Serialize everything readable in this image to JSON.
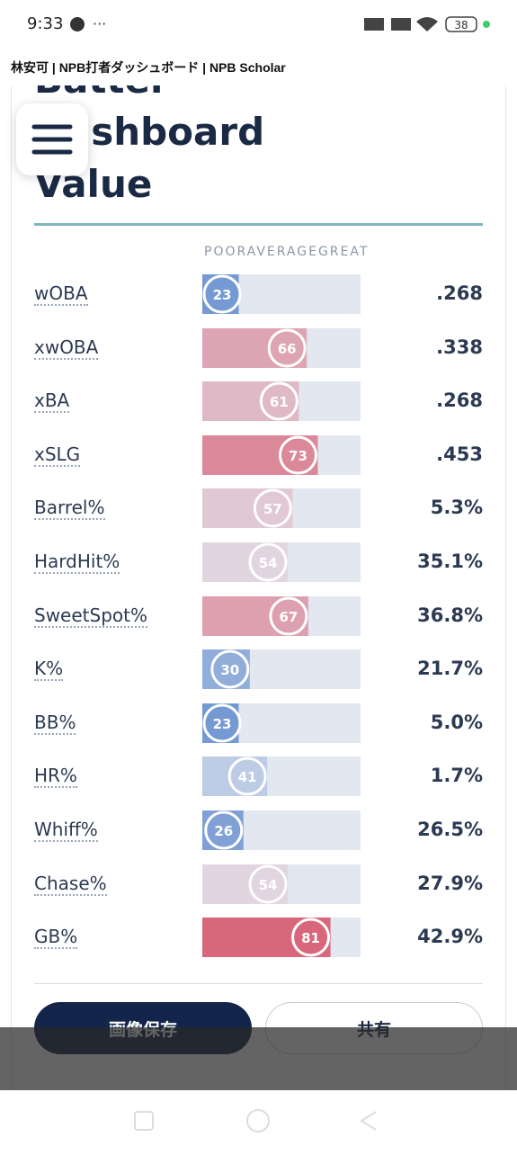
{
  "status_bar": {
    "time": "9:33",
    "battery": "38"
  },
  "page_title": "林安可 | NPB打者ダッシュボード | NPB Scholar",
  "heading": [
    "Batter",
    "Dashboard",
    "Value"
  ],
  "scale_labels": [
    "POOR",
    "AVERAGE",
    "GREAT"
  ],
  "metrics": [
    {
      "name": "wOBA",
      "percentile": 23,
      "value": ".268"
    },
    {
      "name": "xwOBA",
      "percentile": 66,
      "value": ".338"
    },
    {
      "name": "xBA",
      "percentile": 61,
      "value": ".268"
    },
    {
      "name": "xSLG",
      "percentile": 73,
      "value": ".453"
    },
    {
      "name": "Barrel%",
      "percentile": 57,
      "value": "5.3%"
    },
    {
      "name": "HardHit%",
      "percentile": 54,
      "value": "35.1%"
    },
    {
      "name": "SweetSpot%",
      "percentile": 67,
      "value": "36.8%"
    },
    {
      "name": "K%",
      "percentile": 30,
      "value": "21.7%"
    },
    {
      "name": "BB%",
      "percentile": 23,
      "value": "5.0%"
    },
    {
      "name": "HR%",
      "percentile": 41,
      "value": "1.7%"
    },
    {
      "name": "Whiff%",
      "percentile": 26,
      "value": "26.5%"
    },
    {
      "name": "Chase%",
      "percentile": 54,
      "value": "27.9%"
    },
    {
      "name": "GB%",
      "percentile": 81,
      "value": "42.9%"
    }
  ],
  "buttons": {
    "save": "画像保存",
    "share": "共有"
  }
}
